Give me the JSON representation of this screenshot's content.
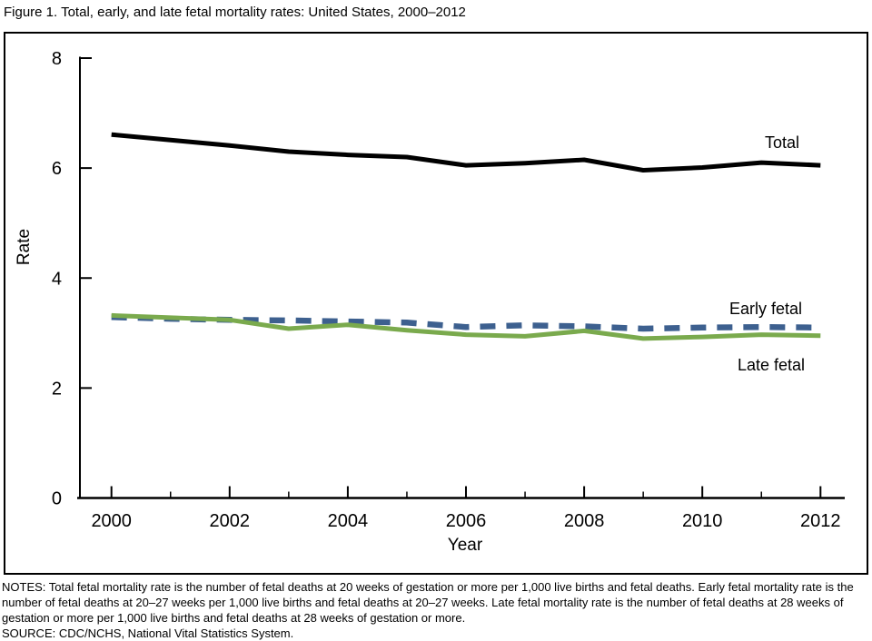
{
  "figure_title": "Figure 1. Total, early, and late fetal mortality rates: United States, 2000–2012",
  "chart_data": {
    "type": "line",
    "title": "Figure 1. Total, early, and late fetal mortality rates: United States, 2000–2012",
    "xlabel": "Year",
    "ylabel": "Rate",
    "xlim": [
      2000,
      2012
    ],
    "ylim": [
      0,
      8
    ],
    "yticks": [
      0,
      2,
      4,
      6,
      8
    ],
    "xticks_major": [
      2000,
      2002,
      2004,
      2006,
      2008,
      2010,
      2012
    ],
    "xticks_minor": [
      2001,
      2003,
      2005,
      2007,
      2009,
      2011
    ],
    "grid": false,
    "legend_position": "inline-labels-right-of-lines",
    "x": [
      2000,
      2001,
      2002,
      2003,
      2004,
      2005,
      2006,
      2007,
      2008,
      2009,
      2010,
      2011,
      2012
    ],
    "series": [
      {
        "name": "Early fetal",
        "color": "#3D608F",
        "line_style": "dashed",
        "values": [
          3.29,
          3.26,
          3.24,
          3.23,
          3.21,
          3.19,
          3.11,
          3.14,
          3.12,
          3.08,
          3.1,
          3.11,
          3.1
        ]
      },
      {
        "name": "Late fetal",
        "color": "#7AAA4D",
        "line_style": "solid",
        "values": [
          3.32,
          3.28,
          3.24,
          3.08,
          3.15,
          3.05,
          2.97,
          2.94,
          3.04,
          2.9,
          2.93,
          2.97,
          2.95
        ]
      },
      {
        "name": "Total",
        "color": "#000000",
        "line_style": "solid",
        "values": [
          6.61,
          6.51,
          6.41,
          6.3,
          6.24,
          6.2,
          6.05,
          6.09,
          6.15,
          5.96,
          6.01,
          6.1,
          6.05
        ]
      }
    ]
  },
  "notes": "NOTES: Total fetal mortality rate is the number of fetal deaths at 20 weeks of gestation or more per 1,000 live births and fetal deaths. Early fetal mortality rate is the number of fetal deaths at 20–27 weeks per 1,000 live births and fetal deaths at 20–27 weeks. Late fetal mortality rate is the number of fetal deaths at 28 weeks of gestation or more per 1,000 live births and fetal deaths at 28 weeks of gestation or more.",
  "source": "SOURCE: CDC/NCHS, National Vital Statistics System."
}
